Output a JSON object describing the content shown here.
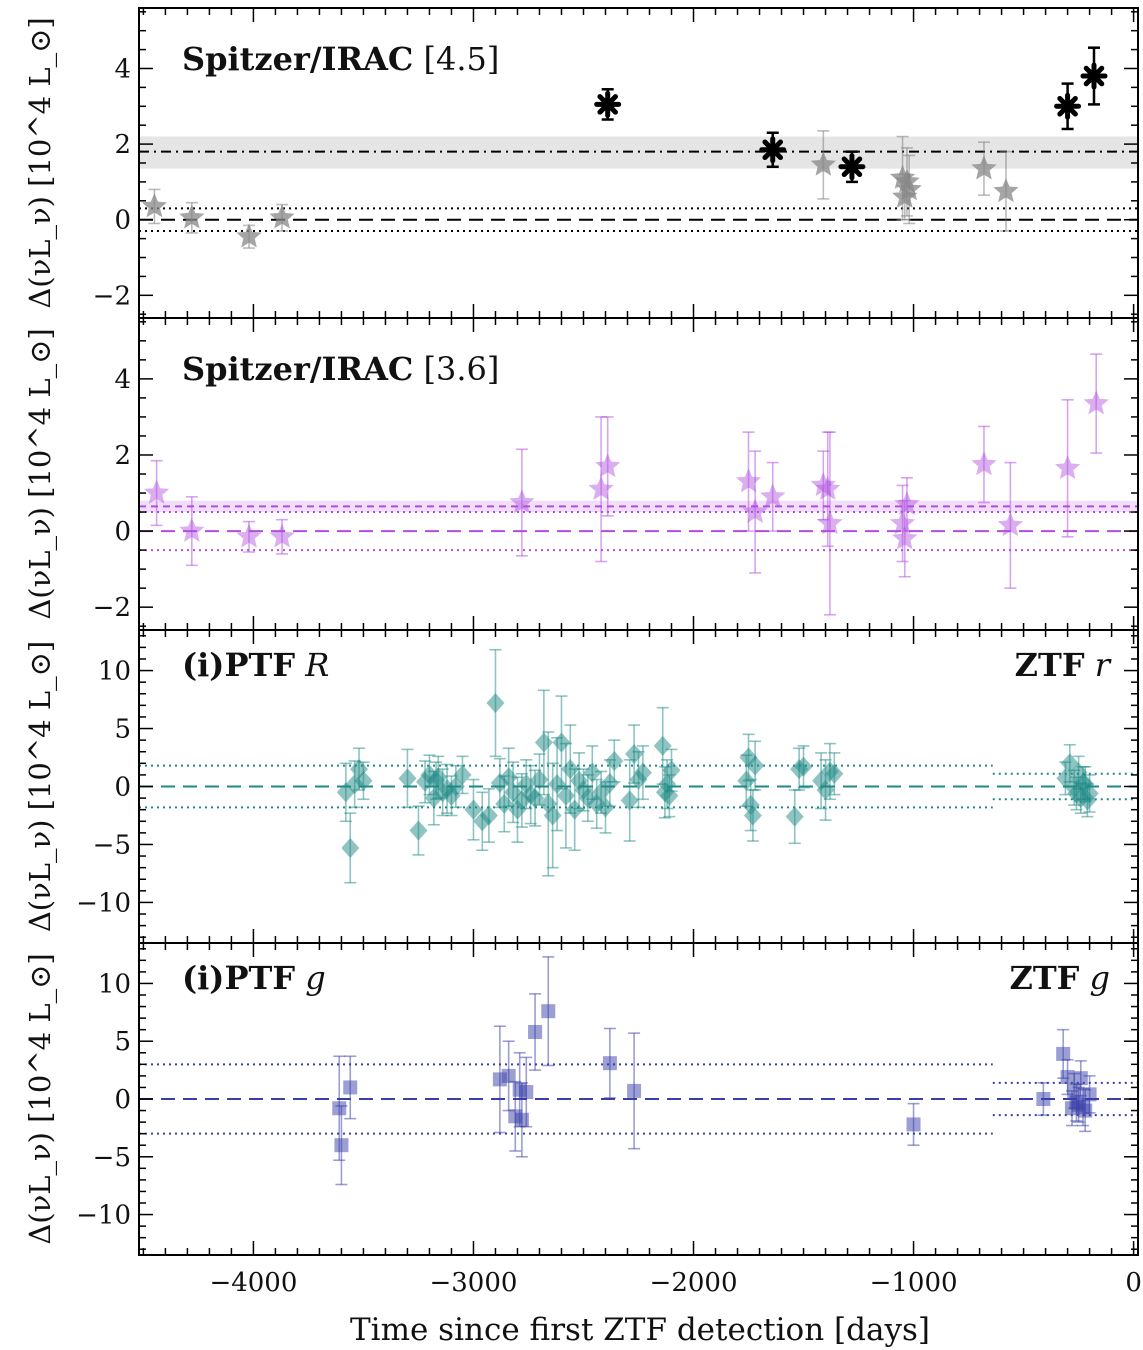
{
  "x_axis": {
    "label": "Time since first ZTF detection [days]",
    "range": [
      -4520,
      20
    ],
    "ticks": [
      -4000,
      -3000,
      -2000,
      -1000,
      0
    ],
    "tick_labels": [
      "−4000",
      "−3000",
      "−2000",
      "−1000",
      "0"
    ]
  },
  "y_label": "Δ(νL_ν) [10^4 L_⊙]",
  "chart_data": [
    {
      "type": "scatter",
      "panel": "spitzer-4.5",
      "title_bold": "Spitzer/IRAC",
      "title_rest": "[4.5]",
      "ylim": [
        -2.6,
        5.6
      ],
      "yticks": [
        -2,
        0,
        2,
        4
      ],
      "ytick_labels": [
        "−2",
        "0",
        "2",
        "4"
      ],
      "color": "#000000",
      "mean_line": 1.8,
      "mean_band": [
        1.35,
        2.2
      ],
      "baseline": 0,
      "baseline_sigma": [
        -0.3,
        0.3
      ],
      "series": [
        {
          "style": "faint",
          "x": [
            -4450,
            -4280,
            -4020,
            -3870,
            -1410,
            -1050,
            -1040,
            -1030,
            -1020,
            -680,
            -580
          ],
          "y": [
            0.35,
            0.05,
            -0.45,
            0.05,
            1.45,
            1.1,
            0.6,
            1.0,
            0.8,
            1.35,
            0.75
          ],
          "err": [
            0.45,
            0.4,
            0.3,
            0.35,
            0.9,
            1.1,
            0.6,
            0.9,
            0.9,
            0.7,
            1.05
          ]
        },
        {
          "style": "detected",
          "x": [
            -2390,
            -1640,
            -1280,
            -300,
            -180
          ],
          "y": [
            3.05,
            1.85,
            1.4,
            3.0,
            3.8
          ],
          "err": [
            0.4,
            0.45,
            0.4,
            0.6,
            0.75
          ]
        }
      ]
    },
    {
      "type": "scatter",
      "panel": "spitzer-3.6",
      "title_bold": "Spitzer/IRAC",
      "title_rest": "[3.6]",
      "ylim": [
        -2.6,
        5.6
      ],
      "yticks": [
        -2,
        0,
        2,
        4
      ],
      "ytick_labels": [
        "−2",
        "0",
        "2",
        "4"
      ],
      "color": "#b04ee0",
      "mean_line": 0.65,
      "mean_band": [
        0.5,
        0.8
      ],
      "baseline": 0,
      "baseline_sigma": [
        -0.5,
        0.5
      ],
      "series": [
        {
          "style": "faint",
          "x": [
            -4440,
            -4280,
            -4020,
            -3870,
            -2780,
            -2420,
            -2390,
            -1750,
            -1720,
            -1640,
            -1410,
            -1390,
            -1380,
            -1050,
            -1040,
            -1030,
            -680,
            -560,
            -300,
            -170
          ],
          "y": [
            1.0,
            0.0,
            -0.15,
            -0.15,
            0.75,
            1.1,
            1.7,
            1.3,
            0.5,
            0.9,
            1.2,
            1.1,
            0.2,
            0.2,
            -0.2,
            0.7,
            1.75,
            0.15,
            1.65,
            3.35
          ],
          "err": [
            0.85,
            0.9,
            0.4,
            0.45,
            1.4,
            1.9,
            1.3,
            1.3,
            1.6,
            0.9,
            0.9,
            1.5,
            2.4,
            1.0,
            1.0,
            0.7,
            1.0,
            1.65,
            1.8,
            1.3
          ]
        }
      ]
    },
    {
      "type": "scatter",
      "panel": "ptf-R",
      "title_bold": "(i)PTF",
      "title_rest": "R",
      "title_right_bold": "ZTF",
      "title_right_rest": "r",
      "ylim": [
        -13.5,
        13.5
      ],
      "yticks": [
        -10,
        -5,
        0,
        5,
        10
      ],
      "ytick_labels": [
        "−10",
        "−5",
        "0",
        "5",
        "10"
      ],
      "color": "#1f8a85",
      "baseline": 0,
      "baseline_sigma": [
        -1.8,
        1.8
      ],
      "ztf_sigma": [
        -1.1,
        1.1
      ],
      "series": [
        {
          "style": "marker",
          "x": [
            -3580,
            -3560,
            -3540,
            -3520,
            -3500,
            -3300,
            -3250,
            -3220,
            -3200,
            -3180,
            -3170,
            -3160,
            -3140,
            -3120,
            -3100,
            -3080,
            -3050,
            -3000,
            -2960,
            -2930,
            -2900,
            -2880,
            -2860,
            -2840,
            -2820,
            -2800,
            -2780,
            -2760,
            -2740,
            -2720,
            -2700,
            -2680,
            -2660,
            -2640,
            -2620,
            -2600,
            -2580,
            -2560,
            -2540,
            -2520,
            -2500,
            -2480,
            -2460,
            -2440,
            -2420,
            -2400,
            -2380,
            -2360,
            -2290,
            -2270,
            -2250,
            -2230,
            -2140,
            -2130,
            -2120,
            -2110,
            -2100,
            -1760,
            -1750,
            -1740,
            -1730,
            -1720,
            -1540,
            -1520,
            -1500,
            -1420,
            -1400,
            -1380,
            -1360,
            -310,
            -290,
            -270,
            -260,
            -250,
            -240,
            -230,
            -220,
            -210,
            -200
          ],
          "y": [
            -0.5,
            -5.3,
            0.2,
            1.5,
            0.5,
            0.7,
            -3.8,
            0.4,
            1.0,
            -1.0,
            0.5,
            0.8,
            -0.5,
            -0.2,
            -0.8,
            0.0,
            1.0,
            -2.0,
            -3.0,
            -2.5,
            7.2,
            0.3,
            -1.5,
            0.8,
            -0.5,
            -2.0,
            -1.2,
            0.2,
            -0.7,
            -1.0,
            0.6,
            3.8,
            -1.5,
            -2.5,
            0.2,
            3.8,
            -0.8,
            1.5,
            -2.0,
            0.5,
            -0.3,
            -1.0,
            1.2,
            -1.5,
            -0.5,
            -1.8,
            0.3,
            2.2,
            -1.2,
            2.8,
            0.6,
            1.2,
            3.5,
            -0.5,
            0.2,
            -0.8,
            1.4,
            0.5,
            2.5,
            -1.6,
            -2.5,
            1.8,
            -2.6,
            1.5,
            1.7,
            0.5,
            -0.3,
            1.3,
            1.1,
            0.7,
            2.0,
            -0.1,
            -0.6,
            1.2,
            -1.0,
            0.3,
            0.2,
            -1.2,
            -0.6
          ],
          "err": [
            2.5,
            3.0,
            2.0,
            1.8,
            1.6,
            2.5,
            2.1,
            1.8,
            1.7,
            2.3,
            1.6,
            1.8,
            2.0,
            2.1,
            1.7,
            1.8,
            1.6,
            2.6,
            2.5,
            2.3,
            4.6,
            2.1,
            2.4,
            2.5,
            2.6,
            2.8,
            2.3,
            2.1,
            2.5,
            2.4,
            2.2,
            4.5,
            6.2,
            4.5,
            4.0,
            4.0,
            4.5,
            3.8,
            3.5,
            2.4,
            1.8,
            2.0,
            2.3,
            2.1,
            1.8,
            2.2,
            2.0,
            1.8,
            3.5,
            2.5,
            2.4,
            2.3,
            3.3,
            2.2,
            2.1,
            1.8,
            1.8,
            2.2,
            2.0,
            2.2,
            2.2,
            2.1,
            2.3,
            1.8,
            1.8,
            2.4,
            2.6,
            2.4,
            1.8,
            1.4,
            1.6,
            1.5,
            1.4,
            1.4,
            1.3,
            1.4,
            1.5,
            1.4,
            1.6
          ]
        }
      ]
    },
    {
      "type": "scatter",
      "panel": "ptf-g",
      "title_bold": "(i)PTF",
      "title_rest": "g",
      "title_right_bold": "ZTF",
      "title_right_rest": "g",
      "ylim": [
        -13.5,
        13.5
      ],
      "yticks": [
        -10,
        -5,
        0,
        5,
        10
      ],
      "ytick_labels": [
        "−10",
        "−5",
        "0",
        "5",
        "10"
      ],
      "color": "#3a3fa8",
      "baseline": 0,
      "baseline_sigma": [
        -3.0,
        3.0
      ],
      "ztf_sigma": [
        -1.4,
        1.4
      ],
      "series": [
        {
          "style": "marker",
          "x": [
            -3610,
            -3600,
            -3560,
            -2880,
            -2840,
            -2810,
            -2790,
            -2780,
            -2760,
            -2720,
            -2660,
            -2380,
            -2270,
            -1000,
            -410,
            -320,
            -300,
            -280,
            -270,
            -260,
            -250,
            -240,
            -230,
            -220,
            -200
          ],
          "y": [
            -0.8,
            -4.0,
            1.0,
            1.7,
            2.0,
            -1.5,
            0.8,
            -1.8,
            0.6,
            5.8,
            7.6,
            3.1,
            0.7,
            -2.2,
            0.0,
            3.9,
            1.9,
            -0.8,
            0.7,
            -0.3,
            -0.5,
            1.8,
            -0.7,
            -1.0,
            0.4
          ],
          "err": [
            4.5,
            3.4,
            2.7,
            4.6,
            3.0,
            3.0,
            3.2,
            3.2,
            3.0,
            3.3,
            4.7,
            3.0,
            5.0,
            1.8,
            1.4,
            2.1,
            1.5,
            1.5,
            1.5,
            1.6,
            1.5,
            1.5,
            1.6,
            1.8,
            1.6
          ]
        }
      ]
    }
  ]
}
